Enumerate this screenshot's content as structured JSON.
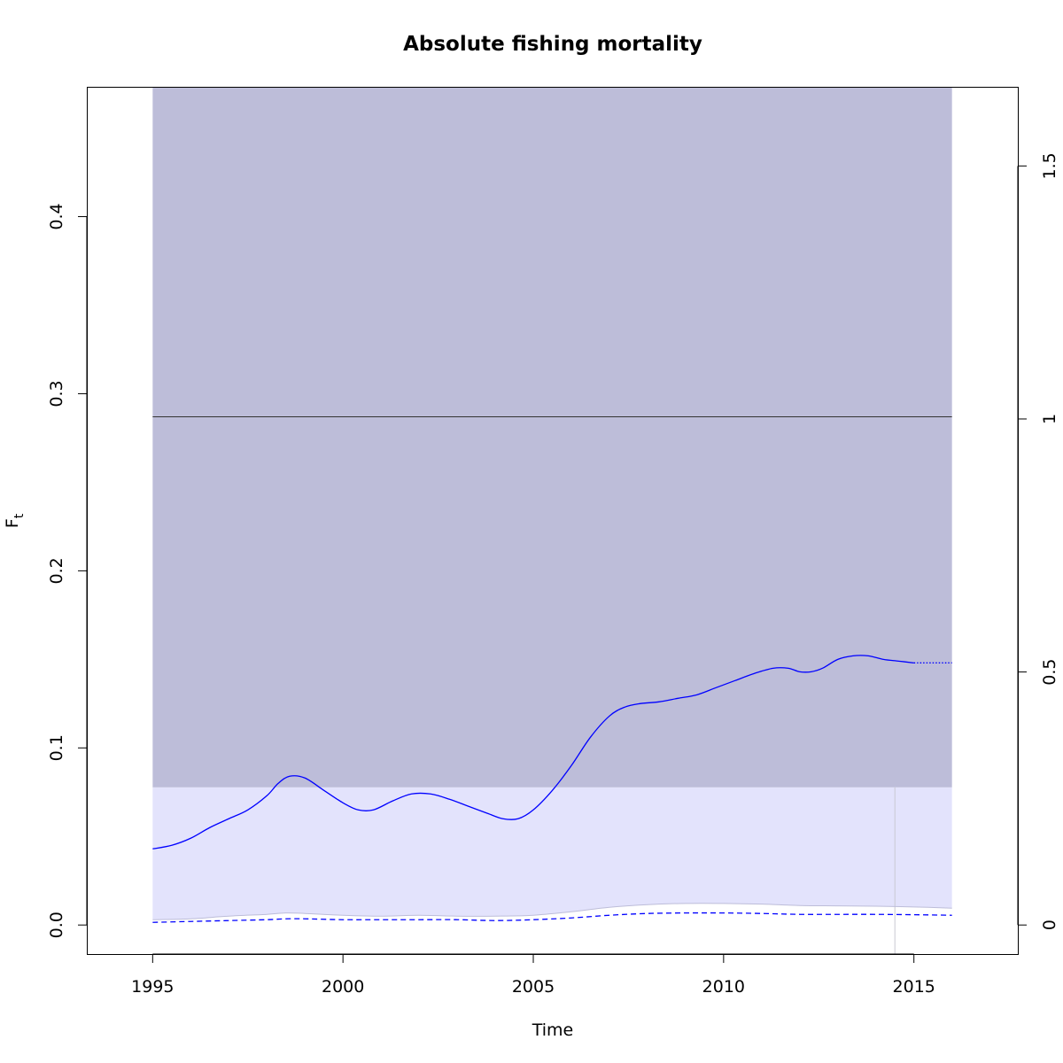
{
  "chart_data": {
    "type": "line",
    "title": "Absolute fishing mortality",
    "xlabel": "Time",
    "ylabel": "F",
    "ylabel_subscript": "t",
    "xlim": [
      1993.27,
      2017.73
    ],
    "ylim": [
      -0.0164,
      0.4733
    ],
    "y2lim": [
      -0.0574,
      1.6564
    ],
    "x_ticks": [
      1995,
      2000,
      2005,
      2010,
      2015
    ],
    "y_ticks": [
      0.0,
      0.1,
      0.2,
      0.3,
      0.4
    ],
    "y_tick_labels": [
      "0.0",
      "0.1",
      "0.2",
      "0.3",
      "0.4"
    ],
    "y2_ticks": [
      0,
      0.5,
      1,
      1.5
    ],
    "y2_tick_labels": [
      "0",
      "0.5",
      "1",
      "1.5"
    ],
    "grid": false,
    "colors": {
      "upper_band": "#bdbdd9",
      "lower_band": "#e3e3fc",
      "estimate": "#0000ff",
      "reference_line": "#333333",
      "lower_bound": "#bdbdd9",
      "vline": "#c8c8d2"
    },
    "bands": {
      "x_range": [
        1995,
        2016
      ],
      "upper_band_y": [
        0.0777,
        0.4733
      ],
      "lower_band_top": 0.0777
    },
    "reference_line_y": 0.287,
    "vertical_line_x": 2014.5,
    "series": [
      {
        "style": "solid",
        "x": [
          1995,
          1995.5,
          1996,
          1996.5,
          1997,
          1997.5,
          1998,
          1998.3,
          1998.6,
          1999,
          1999.5,
          2000,
          2000.4,
          2000.8,
          2001.3,
          2001.8,
          2002.3,
          2002.8,
          2003.3,
          2003.8,
          2004.2,
          2004.6,
          2005,
          2005.5,
          2006,
          2006.5,
          2007,
          2007.4,
          2007.8,
          2008.3,
          2008.8,
          2009.3,
          2009.8,
          2010.3,
          2010.8,
          2011.3,
          2011.7,
          2012,
          2012.3,
          2012.6,
          2013,
          2013.4,
          2013.8,
          2014.2,
          2014.6,
          2015
        ],
        "y": [
          0.043,
          0.045,
          0.049,
          0.055,
          0.06,
          0.065,
          0.073,
          0.08,
          0.084,
          0.083,
          0.076,
          0.069,
          0.065,
          0.065,
          0.07,
          0.074,
          0.074,
          0.071,
          0.067,
          0.063,
          0.06,
          0.06,
          0.065,
          0.076,
          0.09,
          0.106,
          0.118,
          0.123,
          0.125,
          0.126,
          0.128,
          0.13,
          0.134,
          0.138,
          0.142,
          0.145,
          0.145,
          0.143,
          0.143,
          0.145,
          0.15,
          0.152,
          0.152,
          0.15,
          0.149,
          0.148
        ]
      },
      {
        "style": "dotted",
        "x": [
          2015,
          2016
        ],
        "y": [
          0.148,
          0.148
        ]
      },
      {
        "style": "dashed",
        "x": [
          1995,
          1996,
          1997,
          1998,
          1998.5,
          1999,
          2000,
          2001,
          2002,
          2003,
          2004,
          2005,
          2006,
          2007,
          2008,
          2009,
          2010,
          2011,
          2012,
          2013,
          2014,
          2015,
          2016
        ],
        "y": [
          0.0015,
          0.002,
          0.0025,
          0.003,
          0.0035,
          0.0035,
          0.003,
          0.003,
          0.003,
          0.003,
          0.0025,
          0.003,
          0.004,
          0.0055,
          0.0065,
          0.0068,
          0.0068,
          0.0065,
          0.006,
          0.006,
          0.006,
          0.0058,
          0.0055
        ]
      },
      {
        "style": "lower_bound",
        "x": [
          1995,
          1996,
          1997,
          1998,
          1998.5,
          1999,
          2000,
          2001,
          2002,
          2003,
          2004,
          2005,
          2006,
          2007,
          2008,
          2009,
          2010,
          2011,
          2012,
          2013,
          2014,
          2015,
          2016
        ],
        "y": [
          0.003,
          0.0035,
          0.005,
          0.006,
          0.0068,
          0.0065,
          0.0055,
          0.005,
          0.0055,
          0.005,
          0.005,
          0.0055,
          0.0075,
          0.01,
          0.0115,
          0.0122,
          0.0122,
          0.0118,
          0.011,
          0.0108,
          0.0106,
          0.0102,
          0.0095
        ]
      }
    ]
  }
}
